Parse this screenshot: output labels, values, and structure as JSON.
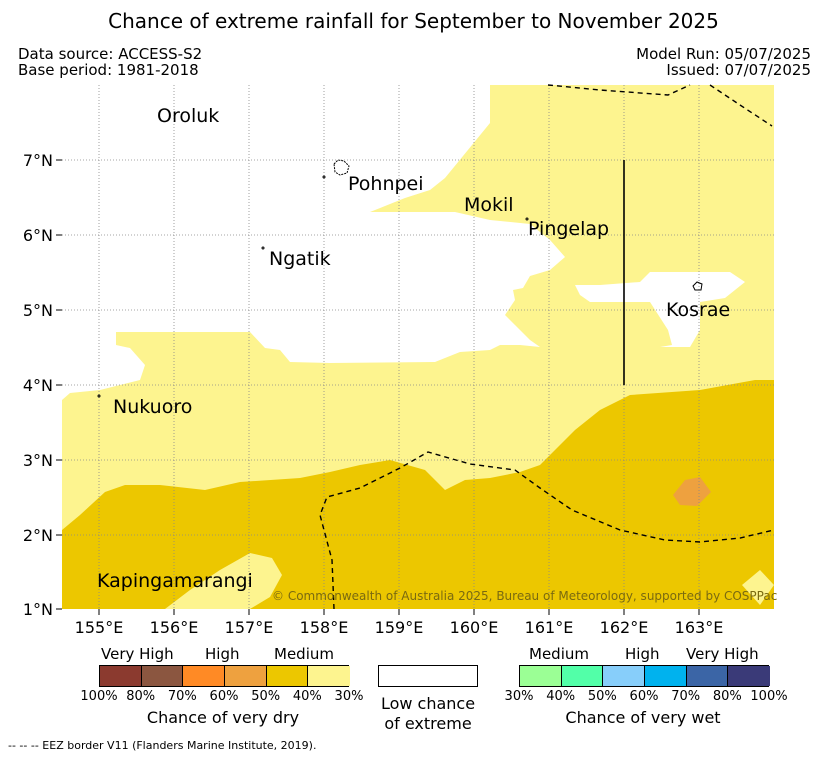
{
  "header": {
    "title": "Chance of extreme rainfall for September to November 2025",
    "data_source": "Data source: ACCESS-S2",
    "base_period": "Base period: 1981-2018",
    "model_run": "Model Run: 05/07/2025",
    "issued": "Issued: 07/07/2025"
  },
  "map": {
    "lat_labels": [
      "7°N",
      "6°N",
      "5°N",
      "4°N",
      "3°N",
      "2°N",
      "1°N"
    ],
    "lon_labels": [
      "155°E",
      "156°E",
      "157°E",
      "158°E",
      "159°E",
      "160°E",
      "161°E",
      "162°E",
      "163°E"
    ],
    "places": {
      "oroluk": "Oroluk",
      "pohnpei": "Pohnpei",
      "mokil": "Mokil",
      "pingelap": "Pingelap",
      "ngatik": "Ngatik",
      "kosrae": "Kosrae",
      "nukuoro": "Nukuoro",
      "kapingamarangi": "Kapingamarangi"
    },
    "copyright": "© Commonwealth of Australia 2025, Bureau of Meteorology, supported by COSPPac",
    "colors": {
      "dry_medium_30_40": "#fdf48f",
      "dry_medium_40_50": "#ecc700",
      "dry_high_50_60": "#eea13f",
      "no_extreme": "#ffffff"
    }
  },
  "legend": {
    "dry": {
      "categories": [
        "Very High",
        "High",
        "Medium"
      ],
      "colors": [
        "#8b3a2f",
        "#8b5640",
        "#ff8a25",
        "#eea13f",
        "#ecc700",
        "#fdf48f"
      ],
      "ticks": [
        "100%",
        "80%",
        "70%",
        "60%",
        "50%",
        "40%",
        "30%"
      ],
      "label": "Chance of very dry"
    },
    "neutral": {
      "color": "#ffffff",
      "label_line1": "Low chance",
      "label_line2": "of extreme"
    },
    "wet": {
      "categories": [
        "Medium",
        "High",
        "Very High"
      ],
      "colors": [
        "#9bff95",
        "#52ffa8",
        "#87cefa",
        "#00b2ee",
        "#3b65a6",
        "#3a3a78"
      ],
      "ticks": [
        "30%",
        "40%",
        "50%",
        "60%",
        "70%",
        "80%",
        "100%"
      ],
      "label": "Chance of very wet"
    }
  },
  "footer": "--  --  -- EEZ border V11 (Flanders Marine Institute, 2019)."
}
